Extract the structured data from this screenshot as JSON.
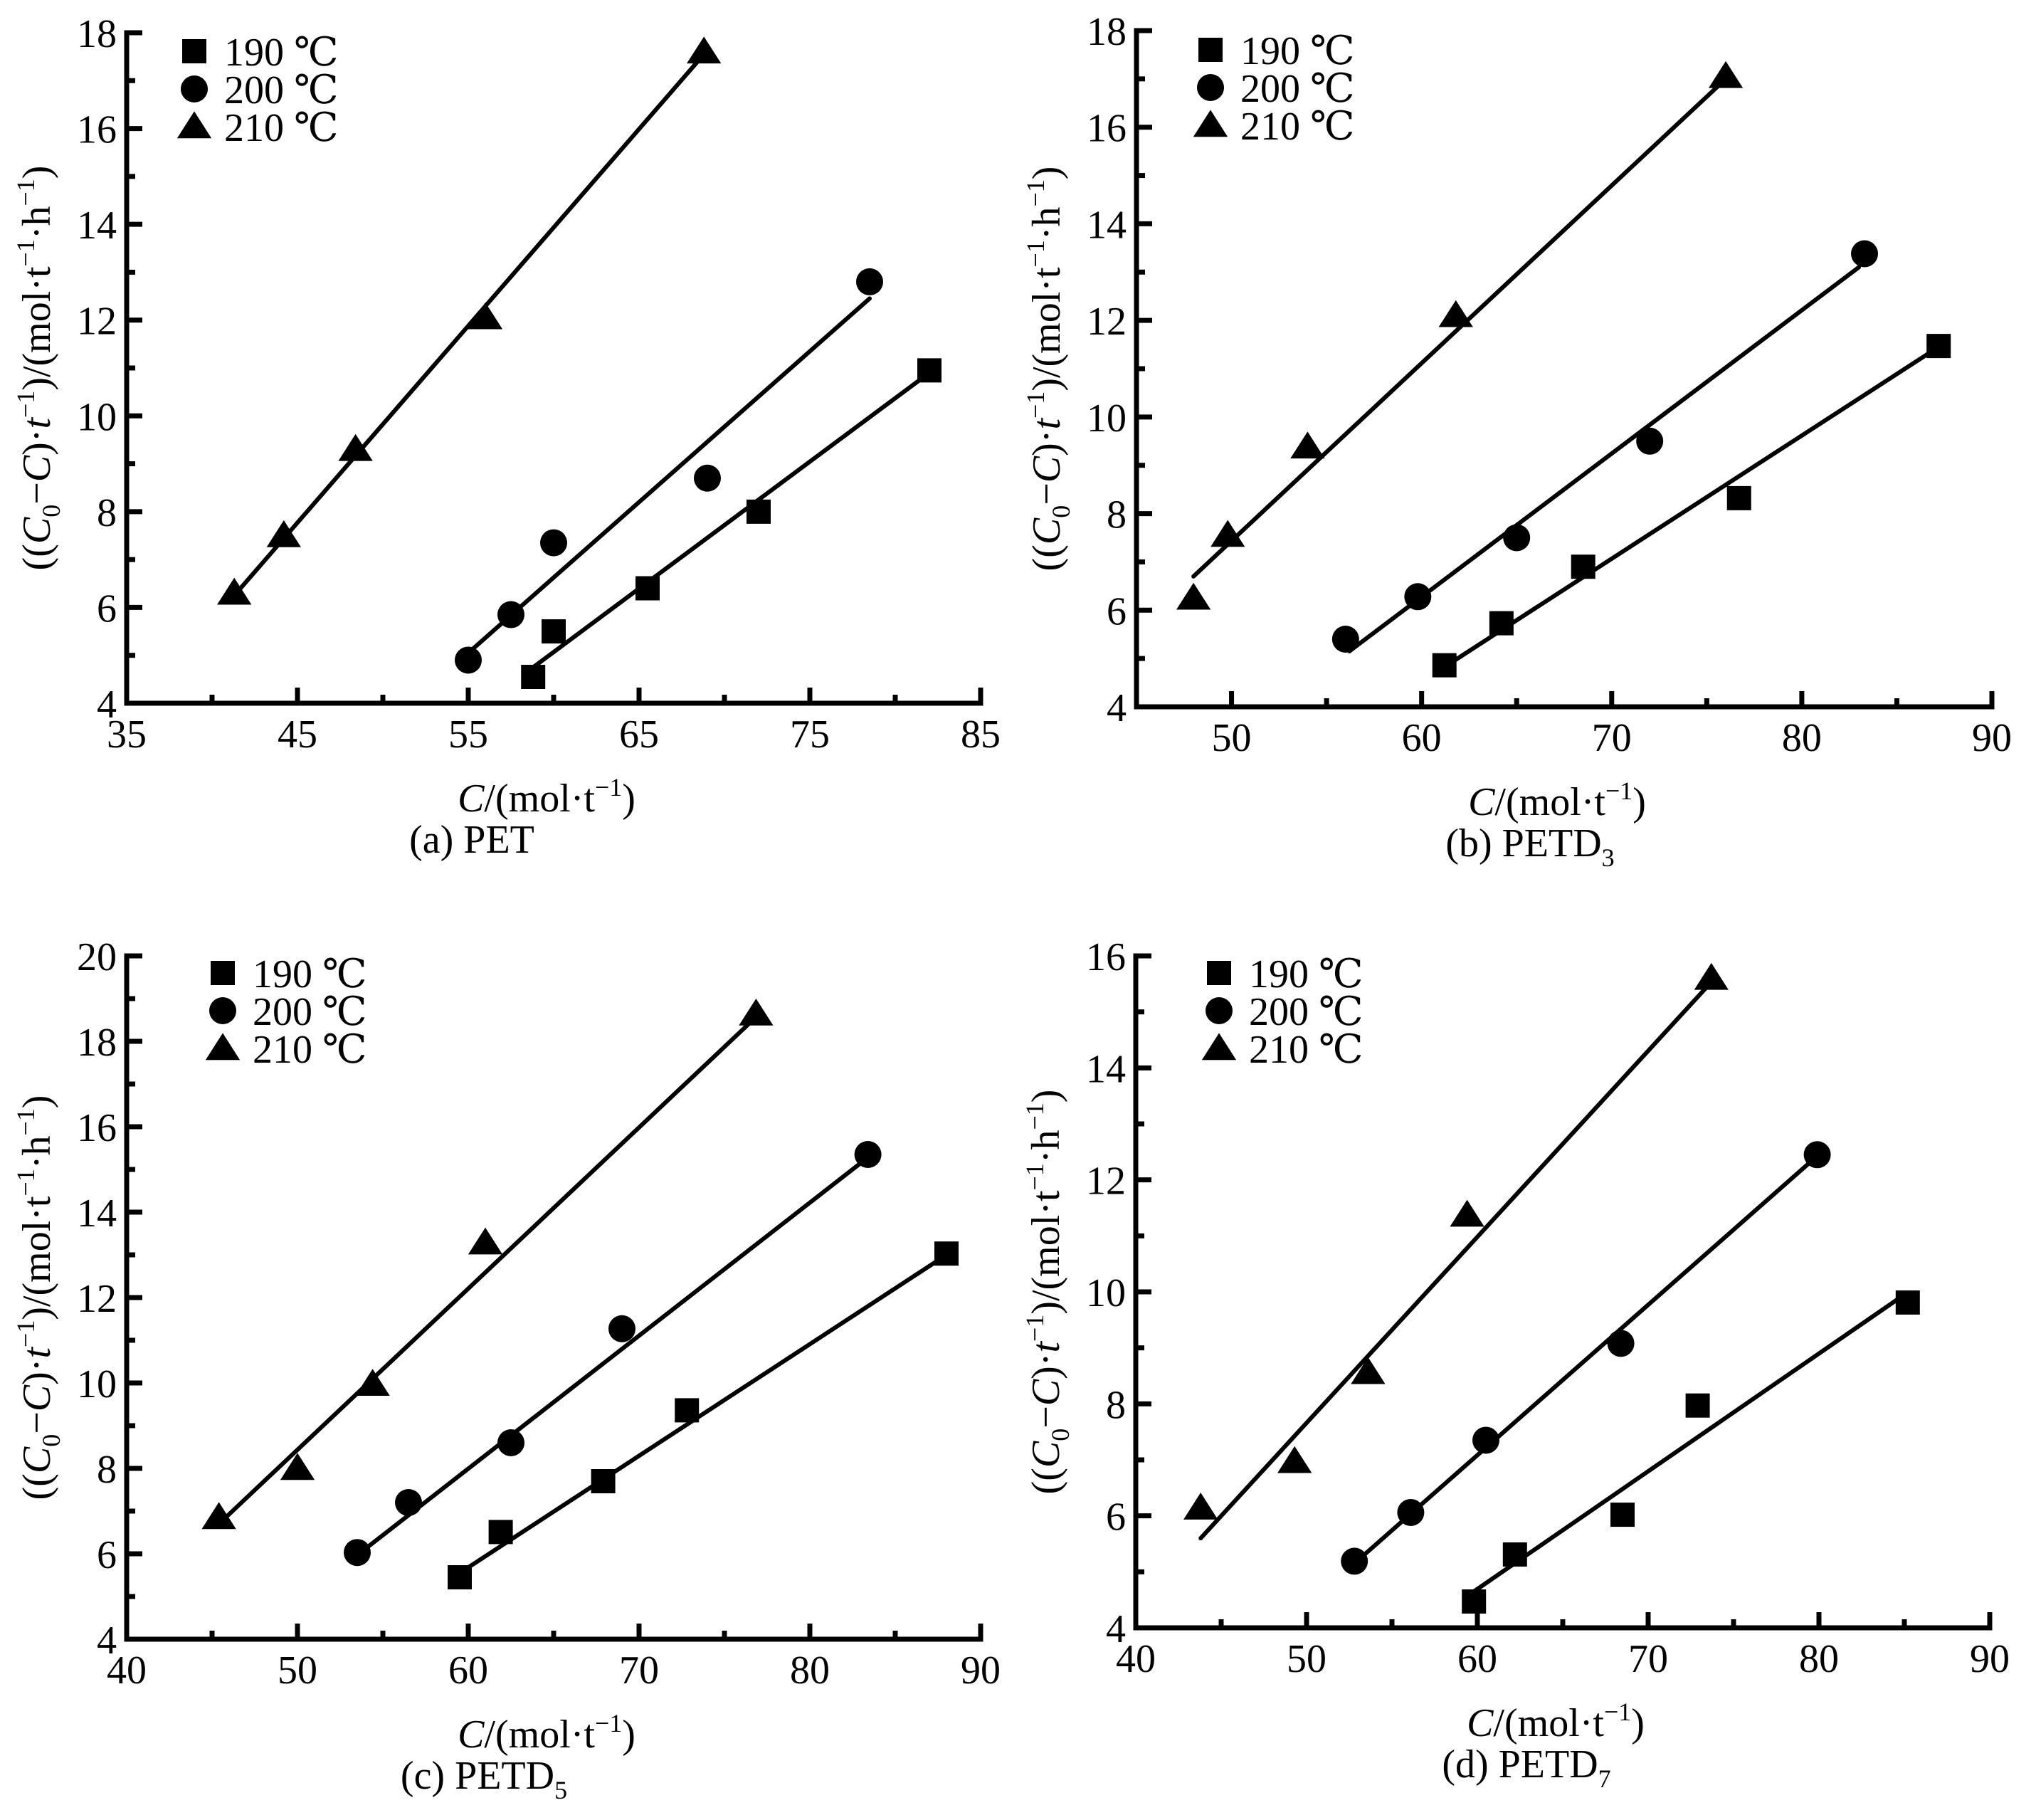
{
  "figure": {
    "legend_entries": [
      "190 ℃",
      "200 ℃",
      "210 ℃"
    ],
    "legend_markers": [
      "square",
      "circle",
      "triangle"
    ]
  },
  "chart_data": [
    {
      "id": "a",
      "type": "scatter",
      "caption": "(a) PET",
      "caption_main": "(a) PET",
      "caption_sub": "",
      "title": "",
      "xlabel": "C/(mol·t⁻¹)",
      "ylabel": "((C₀−C)·t⁻¹)/(mol·t⁻¹·h⁻¹)",
      "xlim": [
        35,
        85
      ],
      "ylim": [
        4,
        18
      ],
      "xticks": [
        35,
        45,
        55,
        65,
        75,
        85
      ],
      "xminor": [
        40,
        50,
        60,
        70,
        80
      ],
      "yticks": [
        4,
        6,
        8,
        10,
        12,
        14,
        16,
        18
      ],
      "yminor": [
        5,
        7,
        9,
        11,
        13,
        15,
        17
      ],
      "legend": "top-left",
      "grid": false,
      "series": [
        {
          "name": "190 ℃",
          "marker": "square",
          "x": [
            58.8,
            60.0,
            65.5,
            72.0,
            82.0
          ],
          "y": [
            4.55,
            5.5,
            6.4,
            8.0,
            10.95
          ],
          "fit": {
            "x": [
              58.8,
              82.0
            ],
            "y": [
              4.75,
              10.9
            ]
          }
        },
        {
          "name": "200 ℃",
          "marker": "circle",
          "x": [
            55.0,
            57.5,
            60.0,
            69.0,
            78.5
          ],
          "y": [
            4.9,
            5.85,
            7.35,
            8.7,
            12.8
          ],
          "fit": {
            "x": [
              55.0,
              78.5
            ],
            "y": [
              5.05,
              12.45
            ]
          }
        },
        {
          "name": "210 ℃",
          "marker": "triangle",
          "x": [
            41.3,
            44.2,
            48.4,
            56.0,
            68.8
          ],
          "y": [
            6.3,
            7.5,
            9.3,
            12.05,
            17.6
          ],
          "fit": {
            "x": [
              41.3,
              68.8
            ],
            "y": [
              6.25,
              17.55
            ]
          }
        }
      ]
    },
    {
      "id": "b",
      "type": "scatter",
      "caption": "(b) PETD3",
      "caption_main": "(b) PETD",
      "caption_sub": "3",
      "title": "",
      "xlabel": "C/(mol·t⁻¹)",
      "ylabel": "((C₀−C)·t⁻¹)/(mol·t⁻¹·h⁻¹)",
      "xlim": [
        45,
        90
      ],
      "ylim": [
        4,
        18
      ],
      "xticks": [
        50,
        60,
        70,
        80,
        90
      ],
      "xminor": [
        55,
        65,
        75,
        85
      ],
      "yticks": [
        4,
        6,
        8,
        10,
        12,
        14,
        16,
        18
      ],
      "yminor": [
        5,
        7,
        9,
        11,
        13,
        15,
        17
      ],
      "legend": "top-left",
      "grid": false,
      "series": [
        {
          "name": "190 ℃",
          "marker": "square",
          "x": [
            61.2,
            64.2,
            68.5,
            76.7,
            87.2
          ],
          "y": [
            4.86,
            5.73,
            6.9,
            8.32,
            11.47
          ],
          "fit": {
            "x": [
              61.5,
              87.0
            ],
            "y": [
              4.9,
              11.4
            ]
          }
        },
        {
          "name": "200 ℃",
          "marker": "circle",
          "x": [
            56.0,
            59.8,
            65.0,
            72.0,
            83.3
          ],
          "y": [
            5.4,
            6.28,
            7.5,
            9.5,
            13.38
          ],
          "fit": {
            "x": [
              56.2,
              83.0
            ],
            "y": [
              5.15,
              13.1
            ]
          }
        },
        {
          "name": "210 ℃",
          "marker": "triangle",
          "x": [
            48.0,
            49.8,
            54.0,
            61.8,
            76.0
          ],
          "y": [
            6.25,
            7.55,
            9.38,
            12.1,
            17.05
          ],
          "fit": {
            "x": [
              48.0,
              76.0
            ],
            "y": [
              6.7,
              17.0
            ]
          }
        }
      ]
    },
    {
      "id": "c",
      "type": "scatter",
      "caption": "(c) PETD5",
      "caption_main": "(c) PETD",
      "caption_sub": "5",
      "title": "",
      "xlabel": "C/(mol·t⁻¹)",
      "ylabel": "((C₀−C)·t⁻¹)/(mol·t⁻¹·h⁻¹)",
      "xlim": [
        40,
        90
      ],
      "ylim": [
        4,
        20
      ],
      "xticks": [
        40,
        50,
        60,
        70,
        80,
        90
      ],
      "xminor": [
        45,
        55,
        65,
        75,
        85
      ],
      "yticks": [
        4,
        6,
        8,
        10,
        12,
        14,
        16,
        18,
        20
      ],
      "yminor": [
        5,
        7,
        9,
        11,
        13,
        15,
        17,
        19
      ],
      "legend": "top-left",
      "grid": false,
      "series": [
        {
          "name": "190 ℃",
          "marker": "square",
          "x": [
            59.5,
            61.9,
            67.9,
            72.8,
            88.0
          ],
          "y": [
            5.45,
            6.51,
            7.7,
            9.36,
            13.03
          ],
          "fit": {
            "x": [
              59.5,
              88.0
            ],
            "y": [
              5.55,
              13.0
            ]
          }
        },
        {
          "name": "200 ℃",
          "marker": "circle",
          "x": [
            53.5,
            56.5,
            62.5,
            69.0,
            83.4
          ],
          "y": [
            6.03,
            7.2,
            8.6,
            11.27,
            15.35
          ],
          "fit": {
            "x": [
              53.6,
              83.3
            ],
            "y": [
              6.0,
              15.25
            ]
          }
        },
        {
          "name": "210 ℃",
          "marker": "triangle",
          "x": [
            45.4,
            50.0,
            54.4,
            61.0,
            76.85
          ],
          "y": [
            6.85,
            8.0,
            9.97,
            13.28,
            18.64
          ],
          "fit": {
            "x": [
              45.4,
              76.8
            ],
            "y": [
              6.7,
              18.55
            ]
          }
        }
      ]
    },
    {
      "id": "d",
      "type": "scatter",
      "caption": "(d) PETD7",
      "caption_main": "(d) PETD",
      "caption_sub": "7",
      "title": "",
      "xlabel": "C/(mol·t⁻¹)",
      "ylabel": "((C₀−C)·t⁻¹)/(mol·t⁻¹·h⁻¹)",
      "xlim": [
        40,
        90
      ],
      "ylim": [
        4,
        16
      ],
      "xticks": [
        40,
        50,
        60,
        70,
        80,
        90
      ],
      "xminor": [
        45,
        55,
        65,
        75,
        85
      ],
      "yticks": [
        4,
        6,
        8,
        10,
        12,
        14,
        16
      ],
      "yminor": [
        5,
        7,
        9,
        11,
        13,
        15
      ],
      "legend": "top-left",
      "grid": false,
      "series": [
        {
          "name": "190 ℃",
          "marker": "square",
          "x": [
            59.8,
            62.2,
            68.5,
            72.9,
            85.2
          ],
          "y": [
            4.47,
            5.31,
            6.02,
            7.97,
            9.81
          ],
          "fit": {
            "x": [
              59.8,
              85.0
            ],
            "y": [
              4.65,
              9.95
            ]
          }
        },
        {
          "name": "200 ℃",
          "marker": "circle",
          "x": [
            52.8,
            56.1,
            60.5,
            68.4,
            79.9
          ],
          "y": [
            5.19,
            6.06,
            7.35,
            9.08,
            12.45
          ],
          "fit": {
            "x": [
              52.8,
              79.8
            ],
            "y": [
              5.15,
              12.4
            ]
          }
        },
        {
          "name": "210 ℃",
          "marker": "triangle",
          "x": [
            43.8,
            49.3,
            53.6,
            59.4,
            73.7
          ],
          "y": [
            6.14,
            6.97,
            8.56,
            11.37,
            15.6
          ],
          "fit": {
            "x": [
              43.8,
              73.6
            ],
            "y": [
              5.6,
              15.5
            ]
          }
        }
      ]
    }
  ]
}
